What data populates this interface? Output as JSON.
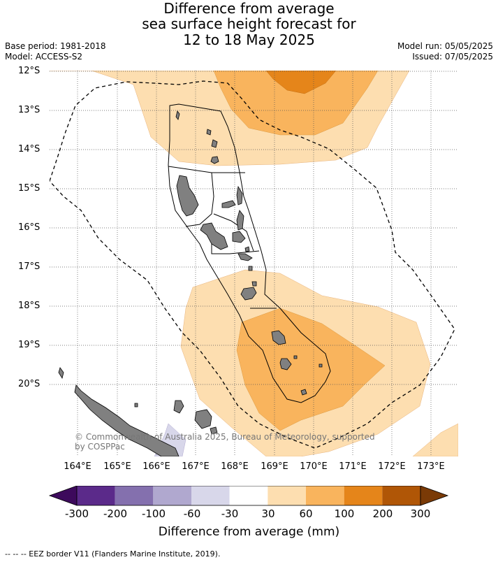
{
  "title": {
    "line1": "Difference from average",
    "line2": "sea surface height forecast for",
    "line3": "12 to 18 May 2025"
  },
  "meta": {
    "base_period": "Base period: 1981-2018",
    "model": "Model: ACCESS-S2",
    "model_run": "Model run: 05/05/2025",
    "issued": "Issued: 07/05/2025"
  },
  "axes": {
    "lat_labels": [
      "12°S",
      "13°S",
      "14°S",
      "15°S",
      "16°S",
      "17°S",
      "18°S",
      "19°S",
      "20°S"
    ],
    "lon_labels": [
      "164°E",
      "165°E",
      "166°E",
      "167°E",
      "168°E",
      "169°E",
      "170°E",
      "171°E",
      "172°E",
      "173°E"
    ]
  },
  "copyright": "© Commonwealth of Australia 2025, Bureau of Meteorology, supported by COSPPac",
  "colorbar": {
    "title": "Difference from average (mm)",
    "tick_labels": [
      "-300",
      "-200",
      "-100",
      "-60",
      "-30",
      "30",
      "60",
      "100",
      "200",
      "300"
    ],
    "colors": [
      "#3d0a5c",
      "#5b2a8a",
      "#8470ae",
      "#b0a8cf",
      "#d8d7ea",
      "#ffffff",
      "#fddeb0",
      "#f9b45d",
      "#e5851a",
      "#b05606",
      "#7a3a06"
    ]
  },
  "footer": "--  --  -- EEZ border V11 (Flanders Marine Institute, 2019)."
}
